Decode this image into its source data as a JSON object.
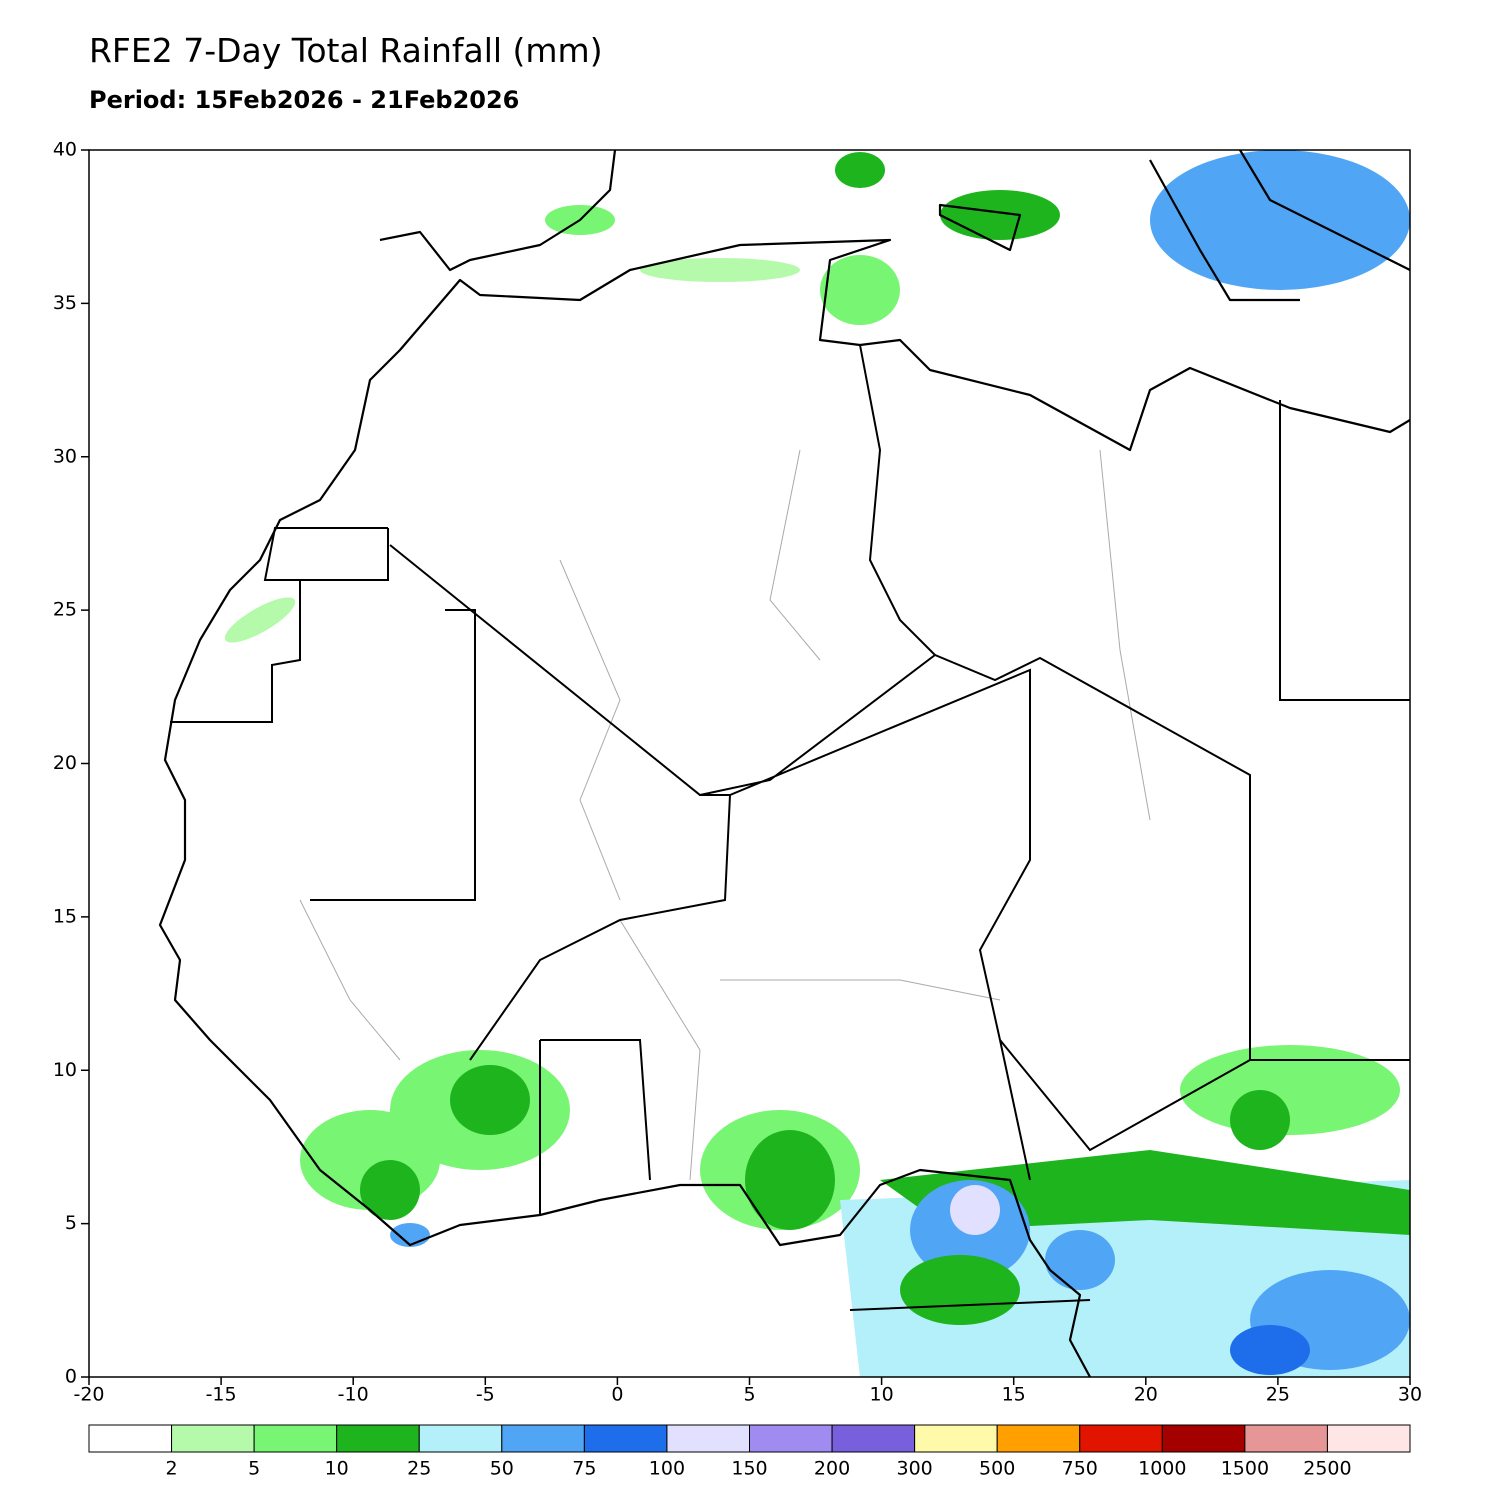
{
  "map": {
    "title": "RFE2 7-Day Total Rainfall (mm)",
    "subtitle": "Period: 15Feb2026 - 21Feb2026",
    "xlim": [
      -20,
      30
    ],
    "ylim": [
      0,
      40
    ],
    "xticks": [
      -20,
      -15,
      -10,
      -5,
      0,
      5,
      10,
      15,
      20,
      25,
      30
    ],
    "yticks": [
      0,
      5,
      10,
      15,
      20,
      25,
      30,
      35,
      40
    ]
  },
  "legend": {
    "colors": [
      "#ffffff",
      "#b4faaa",
      "#78f573",
      "#1eb41e",
      "#b4f0fa",
      "#50a5f5",
      "#1e6eeb",
      "#e1e1ff",
      "#a08cf0",
      "#7860dc",
      "#fffaaa",
      "#ffa000",
      "#e11400",
      "#a50000",
      "#e69696",
      "#ffe6e6"
    ],
    "labels": [
      2,
      5,
      10,
      25,
      50,
      75,
      100,
      150,
      200,
      300,
      500,
      750,
      1000,
      1500,
      2500
    ]
  }
}
